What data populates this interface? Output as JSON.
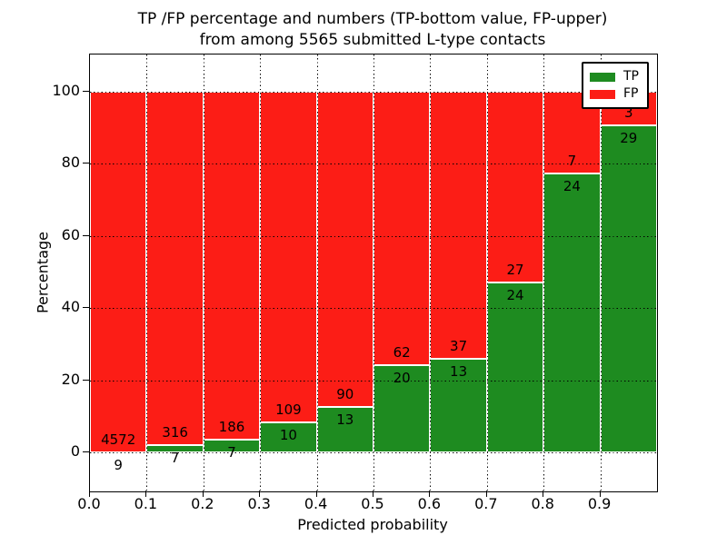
{
  "figure": {
    "title_line1": "TP /FP percentage and numbers (TP-bottom value, FP-upper)",
    "title_line2": "from among 5565 submitted L-type contacts",
    "xlabel": "Predicted probability",
    "ylabel": "Percentage"
  },
  "chart_data": {
    "type": "bar",
    "stacked": true,
    "normalized_to_percent": 100,
    "title": "TP /FP percentage and numbers (TP-bottom value, FP-upper)\nfrom among 5565 submitted L-type contacts",
    "xlabel": "Predicted probability",
    "ylabel": "Percentage",
    "xlim": [
      0.0,
      1.0
    ],
    "ylim": [
      -10.7,
      110.3
    ],
    "xticks": [
      0.0,
      0.1,
      0.2,
      0.3,
      0.4,
      0.5,
      0.6,
      0.7,
      0.8,
      0.9
    ],
    "yticks": [
      0,
      20,
      40,
      60,
      80,
      100
    ],
    "grid": true,
    "grid_style": "dotted",
    "legend_position": "upper right",
    "total_contacts": 5565,
    "series": [
      {
        "name": "TP",
        "color": "#1e8b20"
      },
      {
        "name": "FP",
        "color": "#fc1d16"
      }
    ],
    "bins": [
      {
        "range": [
          0.0,
          0.1
        ],
        "tp": 9,
        "fp": 4572,
        "tp_pct": 0.2
      },
      {
        "range": [
          0.1,
          0.2
        ],
        "tp": 7,
        "fp": 316,
        "tp_pct": 2.17
      },
      {
        "range": [
          0.2,
          0.3
        ],
        "tp": 7,
        "fp": 186,
        "tp_pct": 3.63
      },
      {
        "range": [
          0.3,
          0.4
        ],
        "tp": 10,
        "fp": 109,
        "tp_pct": 8.4
      },
      {
        "range": [
          0.4,
          0.5
        ],
        "tp": 13,
        "fp": 90,
        "tp_pct": 12.62
      },
      {
        "range": [
          0.5,
          0.6
        ],
        "tp": 20,
        "fp": 62,
        "tp_pct": 24.39
      },
      {
        "range": [
          0.6,
          0.7
        ],
        "tp": 13,
        "fp": 37,
        "tp_pct": 26.0
      },
      {
        "range": [
          0.7,
          0.8
        ],
        "tp": 24,
        "fp": 27,
        "tp_pct": 47.06
      },
      {
        "range": [
          0.8,
          0.9
        ],
        "tp": 24,
        "fp": 7,
        "tp_pct": 77.42
      },
      {
        "range": [
          0.9,
          1.0
        ],
        "tp": 29,
        "fp": 3,
        "tp_pct": 90.63
      }
    ]
  }
}
